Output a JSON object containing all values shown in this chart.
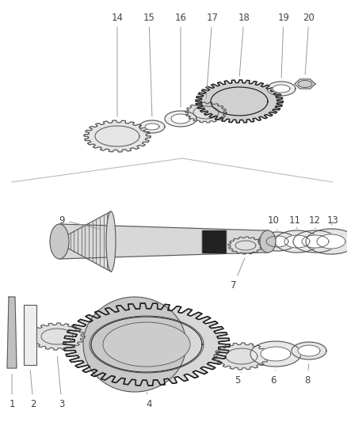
{
  "bg_color": "#ffffff",
  "line_color": "#555555",
  "dark_color": "#222222",
  "gray_color": "#888888",
  "light_gray": "#dddddd",
  "label_color": "#444444",
  "font_size": 8.5
}
